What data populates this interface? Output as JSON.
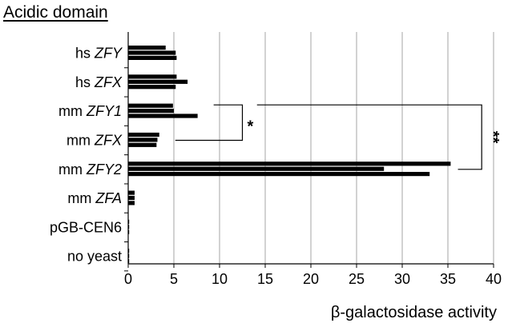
{
  "chart_data": {
    "type": "bar",
    "orientation": "horizontal",
    "title": "Acidic domain",
    "xlabel": "β-galactosidase activity",
    "ylabel": "",
    "xlim": [
      0,
      40
    ],
    "xticks": [
      0,
      5,
      10,
      15,
      20,
      25,
      30,
      35,
      40
    ],
    "grid": true,
    "legend": "none",
    "bar_color": "#000000",
    "categories": [
      {
        "prefix": "hs ",
        "gene": "ZFY",
        "values": [
          4.1,
          5.2,
          5.3
        ]
      },
      {
        "prefix": "hs ",
        "gene": "ZFX",
        "values": [
          5.3,
          6.5,
          5.2
        ]
      },
      {
        "prefix": "mm ",
        "gene": "ZFY1",
        "values": [
          4.9,
          5.0,
          7.6
        ]
      },
      {
        "prefix": "mm ",
        "gene": "ZFX",
        "values": [
          3.4,
          3.2,
          3.1
        ]
      },
      {
        "prefix": "mm ",
        "gene": "ZFY2",
        "values": [
          35.3,
          28.0,
          33.0
        ]
      },
      {
        "prefix": "mm ",
        "gene": "ZFA",
        "values": [
          0.7,
          0.7,
          0.7
        ]
      },
      {
        "prefix": "pGB-CEN6",
        "gene": "",
        "values": [
          0.1,
          0.1,
          0.1
        ]
      },
      {
        "prefix": "no yeast",
        "gene": "",
        "values": [
          0.1,
          0.1,
          0.1
        ]
      }
    ],
    "annotations": [
      {
        "text": "*",
        "between": [
          "mm ZFY1",
          "mm ZFX"
        ]
      },
      {
        "text": "**",
        "between": [
          "mm ZFY1",
          "mm ZFY2"
        ]
      }
    ]
  }
}
